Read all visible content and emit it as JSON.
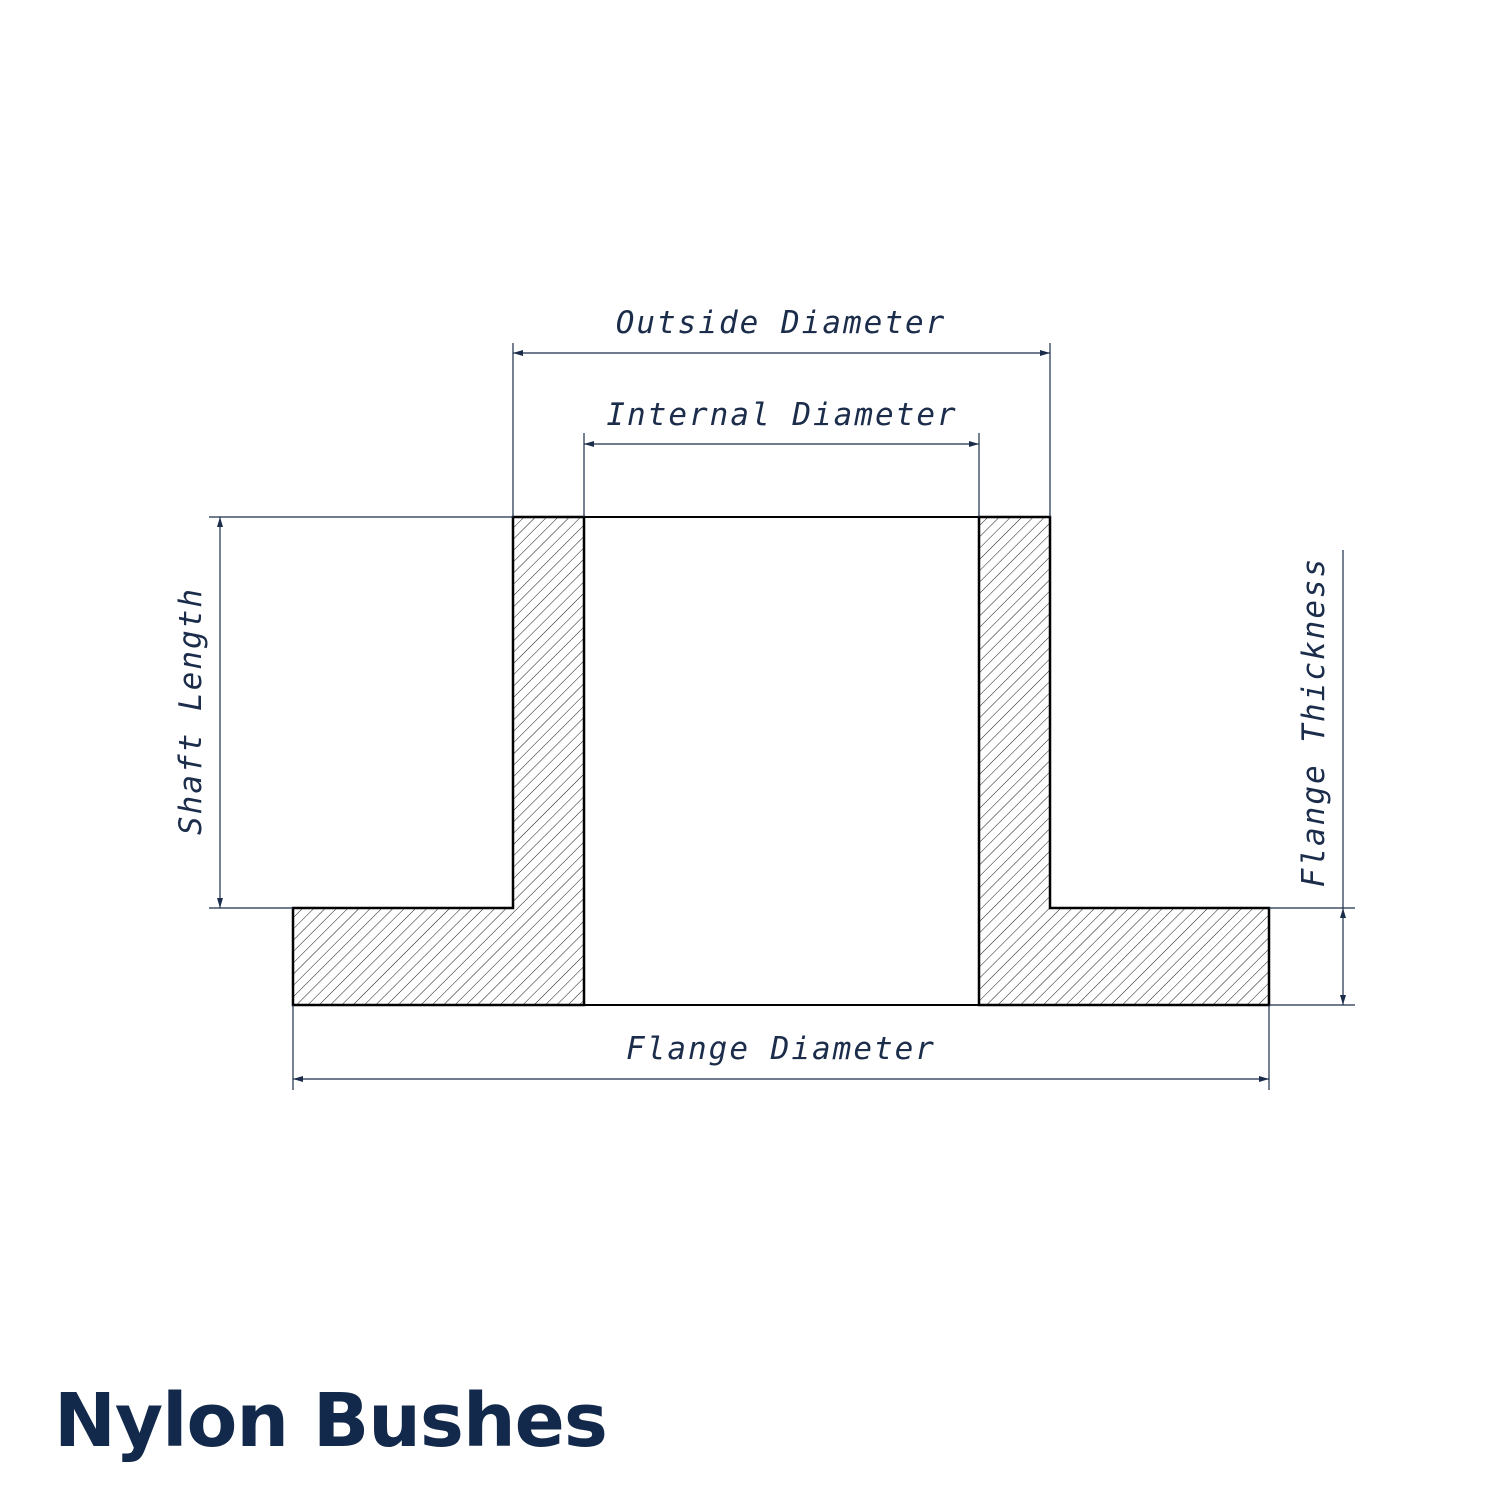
{
  "title": "Nylon Bushes",
  "labels": {
    "outside_diameter": "Outside Diameter",
    "internal_diameter": "Internal Diameter",
    "shaft_length": "Shaft Length",
    "flange_thickness": "Flange Thickness",
    "flange_diameter": "Flange Diameter"
  },
  "colors": {
    "title": "#13294b",
    "dimension": "#1b2d4a",
    "outline": "#000000"
  }
}
